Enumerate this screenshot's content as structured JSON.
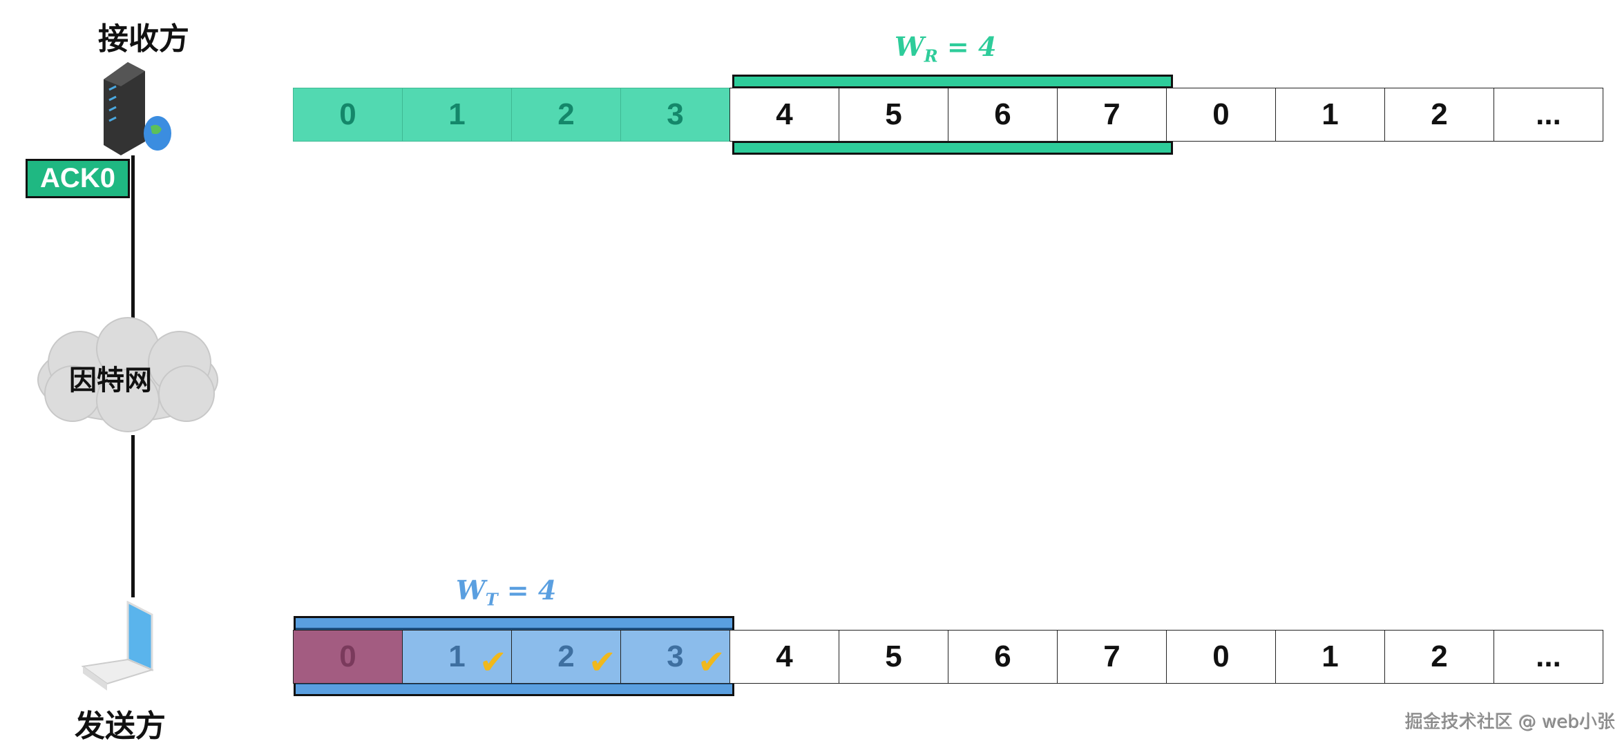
{
  "receiver": {
    "label": "接收方",
    "ack": "ACK0",
    "window_label": "W",
    "window_sub": "R",
    "window_eq": "= 4",
    "cells": [
      "0",
      "1",
      "2",
      "3",
      "4",
      "5",
      "6",
      "7",
      "0",
      "1",
      "2",
      "..."
    ],
    "received_count": 4,
    "window_start": 4,
    "window_size": 4
  },
  "network": {
    "label": "因特网"
  },
  "sender": {
    "label": "发送方",
    "window_label": "W",
    "window_sub": "T",
    "window_eq": "= 4",
    "cells": [
      "0",
      "1",
      "2",
      "3",
      "4",
      "5",
      "6",
      "7",
      "0",
      "1",
      "2",
      "..."
    ],
    "pending_index": 0,
    "acked_indices": [
      1,
      2,
      3
    ],
    "window_start": 0,
    "window_size": 4
  },
  "watermark": "掘金技术社区 @ web小张",
  "colors": {
    "received": "#52d9b1",
    "receiver_window": "#2ecc9a",
    "sender_window": "#5a9fe0",
    "pending": "#a35c81",
    "acked": "#8bbceb",
    "check": "#f0b81c"
  }
}
